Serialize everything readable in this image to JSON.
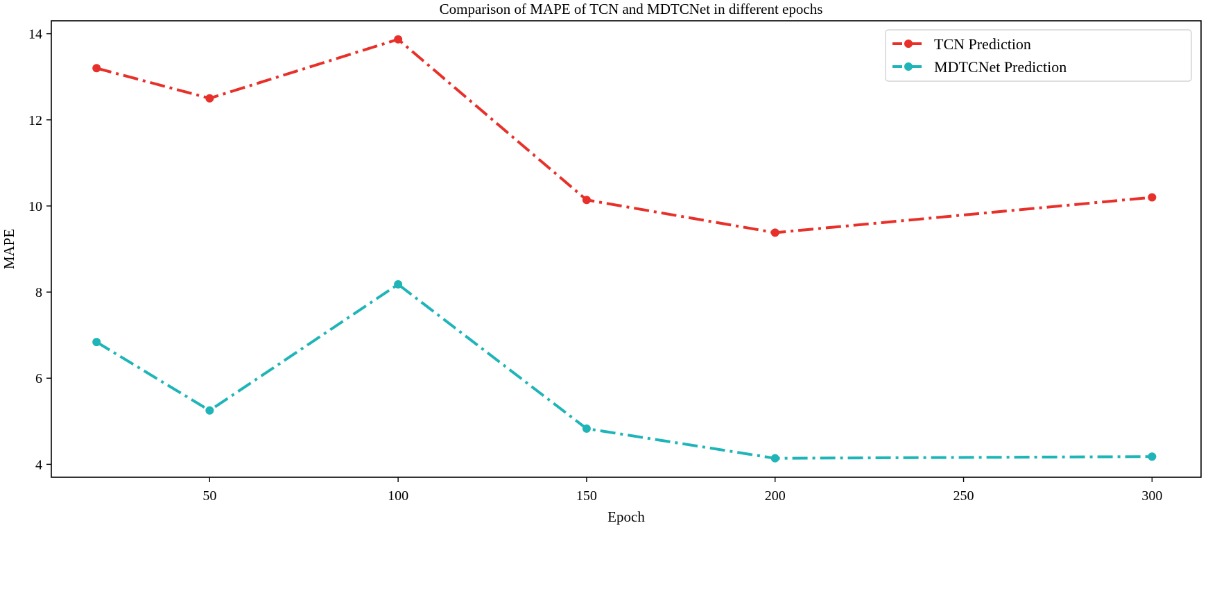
{
  "chart_data": {
    "type": "line",
    "title": "Comparison of MAPE of TCN and MDTCNet in different epochs",
    "xlabel": "Epoch",
    "ylabel": "MAPE",
    "x": [
      20,
      50,
      100,
      150,
      200,
      300
    ],
    "xlim": [
      8,
      313
    ],
    "ylim": [
      3.7,
      14.3
    ],
    "xticks": [
      50,
      100,
      150,
      200,
      250,
      300
    ],
    "yticks": [
      4,
      6,
      8,
      10,
      12,
      14
    ],
    "grid": false,
    "legend_position": "top-right",
    "series": [
      {
        "name": "TCN Prediction",
        "color": "#e8302a",
        "linestyle": "dash-dot",
        "marker": "circle",
        "values": [
          13.2,
          12.5,
          13.87,
          10.14,
          9.38,
          10.2
        ]
      },
      {
        "name": "MDTCNet Prediction",
        "color": "#1fb5b8",
        "linestyle": "dash-dot",
        "marker": "circle",
        "values": [
          6.84,
          5.25,
          8.18,
          4.83,
          4.14,
          4.18
        ]
      }
    ]
  }
}
